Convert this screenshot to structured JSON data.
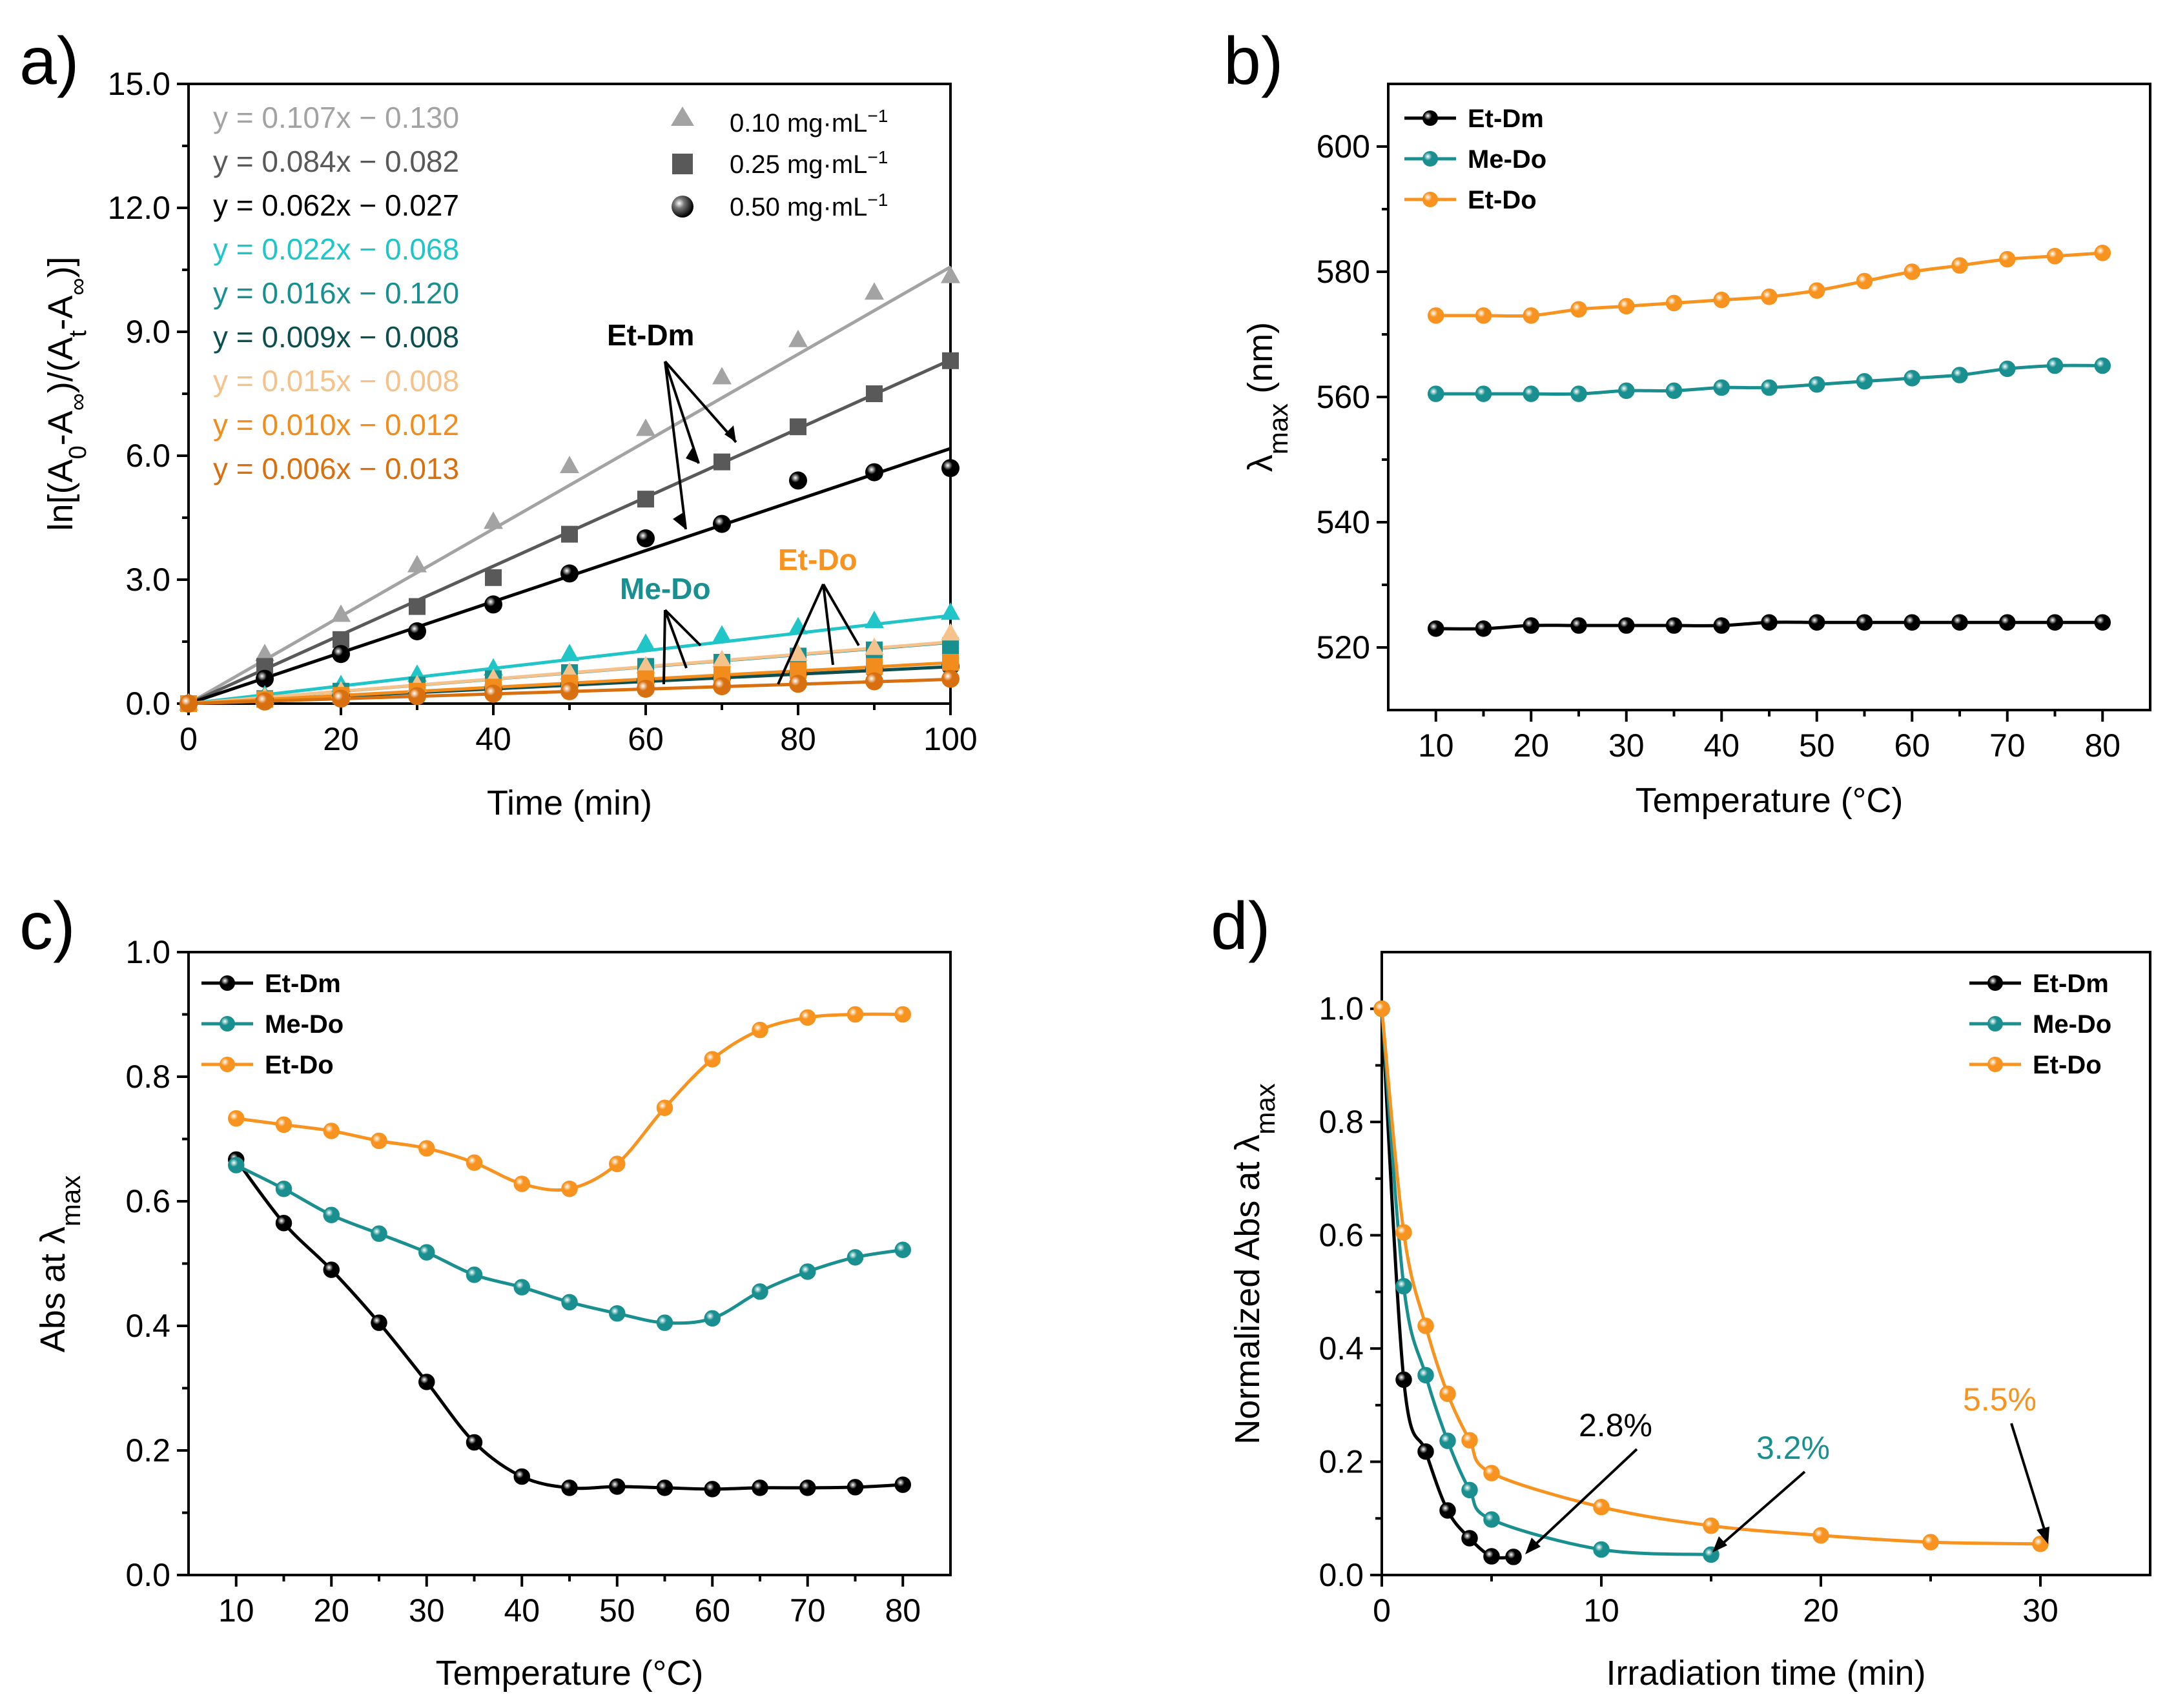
{
  "colors": {
    "a_010_EtDm": "#a3a3a3",
    "a_025_EtDm": "#595959",
    "a_050_EtDm": "#000000",
    "a_010_MeDo": "#20c5c8",
    "a_025_MeDo": "#18908f",
    "a_050_MeDo": "#0d4f4f",
    "a_010_EtDo": "#f5c28c",
    "a_025_EtDo": "#f28c1c",
    "a_050_EtDo": "#d9700f",
    "EtDm": "#000000",
    "MeDo": "#1a8f8f",
    "EtDo": "#f7931e"
  },
  "chart_data": [
    {
      "panel": "a)",
      "type": "scatter",
      "xlabel": "Time (min)",
      "ylabel": "ln[(A₀-A∞)/(Aₜ-A∞)]",
      "ylabel_parts": {
        "p1": "ln[(A",
        "s1": "0",
        "p2": "-A",
        "s2": "∞",
        "p3": ")/(A",
        "s3": "t",
        "p4": "-A",
        "s4": "∞",
        "p5": ")]"
      },
      "xlim": [
        0,
        100
      ],
      "ylim": [
        0,
        15
      ],
      "xticks": [
        0,
        20,
        40,
        60,
        80,
        100
      ],
      "xtick_labels": [
        "0",
        "20",
        "40",
        "60",
        "80",
        "100"
      ],
      "yticks": [
        0,
        3,
        6,
        9,
        12,
        15
      ],
      "ytick_labels": [
        "0.0",
        "3.0",
        "6.0",
        "9.0",
        "12.0",
        "15.0"
      ],
      "legend": [
        {
          "label": "0.10 mg·mL",
          "sup": "−1",
          "marker": "triangle"
        },
        {
          "label": "0.25 mg·mL",
          "sup": "−1",
          "marker": "square"
        },
        {
          "label": "0.50 mg·mL",
          "sup": "−1",
          "marker": "circle"
        }
      ],
      "equations": [
        "y = 0.107x − 0.130",
        "y = 0.084x − 0.082",
        "y = 0.062x − 0.027",
        "y = 0.022x − 0.068",
        "y = 0.016x − 0.120",
        "y = 0.009x − 0.008",
        "y = 0.015x − 0.008",
        "y = 0.010x − 0.012",
        "y = 0.006x − 0.013"
      ],
      "annotations": [
        "Et-Dm",
        "Me-Do",
        "Et-Do"
      ],
      "x": [
        0,
        10,
        20,
        30,
        40,
        50,
        60,
        70,
        80,
        90,
        100
      ],
      "series": [
        {
          "name": "Et-Dm 0.10",
          "color_key": "a_010_EtDm",
          "marker": "triangle",
          "values": [
            0,
            1.2,
            2.15,
            3.35,
            4.4,
            5.75,
            6.65,
            7.9,
            8.8,
            9.95,
            10.35
          ],
          "fit": [
            0.107,
            0.13
          ]
        },
        {
          "name": "Et-Dm 0.25",
          "color_key": "a_025_EtDm",
          "marker": "square",
          "values": [
            0,
            0.9,
            1.55,
            2.35,
            3.05,
            4.1,
            4.95,
            5.85,
            6.7,
            7.5,
            8.3
          ],
          "fit": [
            0.084,
            0.082
          ]
        },
        {
          "name": "Et-Dm 0.50",
          "color_key": "a_050_EtDm",
          "marker": "circle",
          "values": [
            0,
            0.6,
            1.2,
            1.75,
            2.4,
            3.15,
            4.0,
            4.35,
            5.4,
            5.6,
            5.7
          ],
          "fit": [
            0.062,
            0.027
          ]
        },
        {
          "name": "Me-Do 0.10",
          "color_key": "a_010_MeDo",
          "marker": "triangle",
          "values": [
            0,
            0.2,
            0.45,
            0.7,
            0.85,
            1.2,
            1.45,
            1.65,
            1.85,
            2.0,
            2.2
          ],
          "fit": [
            0.022,
            0.068
          ]
        },
        {
          "name": "Me-Do 0.25",
          "color_key": "a_025_MeDo",
          "marker": "square",
          "values": [
            0,
            0.12,
            0.3,
            0.45,
            0.6,
            0.75,
            0.9,
            1.0,
            1.15,
            1.3,
            1.4
          ],
          "fit": [
            0.016,
            0.12
          ]
        },
        {
          "name": "Me-Do 0.50",
          "color_key": "a_050_MeDo",
          "marker": "circle",
          "values": [
            0,
            0.08,
            0.18,
            0.25,
            0.35,
            0.45,
            0.55,
            0.62,
            0.72,
            0.82,
            0.9
          ],
          "fit": [
            0.009,
            0.008
          ]
        },
        {
          "name": "Et-Do 0.10",
          "color_key": "a_010_EtDo",
          "marker": "triangle",
          "values": [
            0,
            0.15,
            0.3,
            0.45,
            0.6,
            0.75,
            0.9,
            1.05,
            1.2,
            1.35,
            1.7
          ],
          "fit": [
            0.015,
            0.008
          ]
        },
        {
          "name": "Et-Do 0.25",
          "color_key": "a_025_EtDo",
          "marker": "square",
          "values": [
            0,
            0.1,
            0.2,
            0.3,
            0.4,
            0.5,
            0.6,
            0.7,
            0.8,
            0.9,
            1.0
          ],
          "fit": [
            0.01,
            0.012
          ]
        },
        {
          "name": "Et-Do 0.50",
          "color_key": "a_050_EtDo",
          "marker": "circle",
          "values": [
            0,
            0.05,
            0.12,
            0.18,
            0.24,
            0.3,
            0.36,
            0.42,
            0.48,
            0.54,
            0.6
          ],
          "fit": [
            0.006,
            0.013
          ]
        }
      ]
    },
    {
      "panel": "b)",
      "type": "line",
      "xlabel": "Temperature (°C)",
      "ylabel": "λmax (nm)",
      "ylabel_parts": {
        "sym": "λ",
        "sub": "max",
        "rest": " (nm)"
      },
      "xlim": [
        5,
        85
      ],
      "ylim": [
        510,
        610
      ],
      "xticks": [
        10,
        20,
        30,
        40,
        50,
        60,
        70,
        80
      ],
      "xtick_labels": [
        "10",
        "20",
        "30",
        "40",
        "50",
        "60",
        "70",
        "80"
      ],
      "yticks": [
        520,
        540,
        560,
        580,
        600
      ],
      "ytick_labels": [
        "520",
        "540",
        "560",
        "580",
        "600"
      ],
      "x": [
        10,
        15,
        20,
        25,
        30,
        35,
        40,
        45,
        50,
        55,
        60,
        65,
        70,
        75,
        80
      ],
      "series": [
        {
          "name": "Et-Dm",
          "color_key": "EtDm",
          "values": [
            523,
            523,
            523.5,
            523.5,
            523.5,
            523.5,
            523.5,
            524,
            524,
            524,
            524,
            524,
            524,
            524,
            524
          ]
        },
        {
          "name": "Me-Do",
          "color_key": "MeDo",
          "values": [
            560.5,
            560.5,
            560.5,
            560.5,
            561,
            561,
            561.5,
            561.5,
            562,
            562.5,
            563,
            563.5,
            564.5,
            565,
            565
          ]
        },
        {
          "name": "Et-Do",
          "color_key": "EtDo",
          "values": [
            573,
            573,
            573,
            574,
            574.5,
            575,
            575.5,
            576,
            577,
            578.5,
            580,
            581,
            582,
            582.5,
            583
          ]
        }
      ]
    },
    {
      "panel": "c)",
      "type": "line",
      "xlabel": "Temperature (°C)",
      "ylabel": "Abs at λmax",
      "ylabel_parts": {
        "pre": "Abs at ",
        "sym": "λ",
        "sub": "max"
      },
      "xlim": [
        5,
        85
      ],
      "ylim": [
        0,
        1.0
      ],
      "xticks": [
        10,
        20,
        30,
        40,
        50,
        60,
        70,
        80
      ],
      "xtick_labels": [
        "10",
        "20",
        "30",
        "40",
        "50",
        "60",
        "70",
        "80"
      ],
      "yticks": [
        0,
        0.2,
        0.4,
        0.6,
        0.8,
        1.0
      ],
      "ytick_labels": [
        "0.0",
        "0.2",
        "0.4",
        "0.6",
        "0.8",
        "1.0"
      ],
      "x": [
        10,
        15,
        20,
        25,
        30,
        35,
        40,
        45,
        50,
        55,
        60,
        65,
        70,
        75,
        80
      ],
      "series": [
        {
          "name": "Et-Dm",
          "color_key": "EtDm",
          "values": [
            0.667,
            0.565,
            0.49,
            0.405,
            0.31,
            0.213,
            0.158,
            0.14,
            0.142,
            0.14,
            0.138,
            0.14,
            0.14,
            0.141,
            0.145
          ]
        },
        {
          "name": "Me-Do",
          "color_key": "MeDo",
          "values": [
            0.658,
            0.62,
            0.578,
            0.548,
            0.518,
            0.482,
            0.462,
            0.438,
            0.42,
            0.405,
            0.412,
            0.455,
            0.487,
            0.51,
            0.522
          ]
        },
        {
          "name": "Et-Do",
          "color_key": "EtDo",
          "values": [
            0.733,
            0.723,
            0.713,
            0.697,
            0.685,
            0.662,
            0.628,
            0.62,
            0.66,
            0.75,
            0.828,
            0.875,
            0.895,
            0.9,
            0.9
          ]
        }
      ]
    },
    {
      "panel": "d)",
      "type": "line",
      "xlabel": "Irradiation time (min)",
      "ylabel": "Normalized Abs at λmax",
      "ylabel_parts": {
        "pre": "Normalized Abs at ",
        "sym": "λ",
        "sub": "max"
      },
      "xlim": [
        0,
        35
      ],
      "ylim": [
        0,
        1.1
      ],
      "xticks": [
        0,
        10,
        20,
        30
      ],
      "xtick_labels": [
        "0",
        "10",
        "20",
        "30"
      ],
      "yticks": [
        0,
        0.2,
        0.4,
        0.6,
        0.8,
        1.0
      ],
      "ytick_labels": [
        "0.0",
        "0.2",
        "0.4",
        "0.6",
        "0.8",
        "1.0"
      ],
      "annotations": [
        "2.8%",
        "3.2%",
        "5.5%"
      ],
      "series": [
        {
          "name": "Et-Dm",
          "color_key": "EtDm",
          "x": [
            0,
            1,
            2,
            3,
            4,
            5,
            6
          ],
          "values": [
            1.0,
            0.345,
            0.218,
            0.114,
            0.065,
            0.033,
            0.032
          ]
        },
        {
          "name": "Me-Do",
          "color_key": "MeDo",
          "x": [
            0,
            1,
            2,
            3,
            4,
            5,
            10,
            15
          ],
          "values": [
            1.0,
            0.51,
            0.353,
            0.237,
            0.15,
            0.098,
            0.045,
            0.036
          ]
        },
        {
          "name": "Et-Do",
          "color_key": "EtDo",
          "x": [
            0,
            1,
            2,
            3,
            4,
            5,
            10,
            15,
            20,
            25,
            30
          ],
          "values": [
            1.0,
            0.605,
            0.44,
            0.32,
            0.238,
            0.18,
            0.12,
            0.087,
            0.07,
            0.058,
            0.055
          ]
        }
      ]
    }
  ]
}
